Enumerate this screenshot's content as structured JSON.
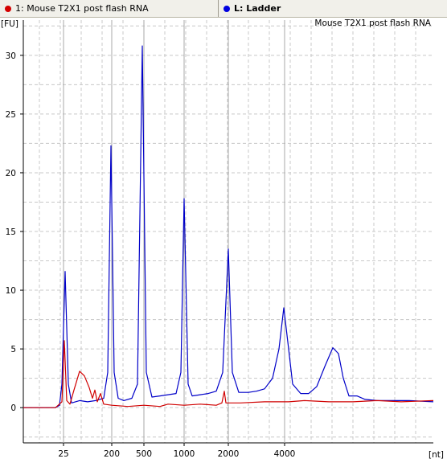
{
  "tabs": [
    {
      "label": "1: Mouse T2X1 post flash RNA",
      "dot_color": "#d40000"
    },
    {
      "label": "L: Ladder",
      "dot_color": "#0000e0"
    }
  ],
  "chart_data": {
    "type": "line",
    "title": "Mouse T2X1 post flash RNA",
    "ylabel": "[FU]",
    "xlabel": "[nt]",
    "ylim": [
      -3,
      33
    ],
    "y_ticks": [
      0,
      5,
      10,
      15,
      20,
      25,
      30
    ],
    "x_ticks": [
      {
        "label": "25",
        "time": 25
      },
      {
        "label": "200",
        "time": 31
      },
      {
        "label": "500",
        "time": 35
      },
      {
        "label": "1000",
        "time": 40
      },
      {
        "label": "2000",
        "time": 45.5
      },
      {
        "label": "4000",
        "time": 52.5
      }
    ],
    "xlim": [
      20,
      71
    ],
    "grid": true,
    "series": [
      {
        "name": "L: Ladder",
        "color": "#0000c8",
        "points": [
          [
            20,
            0
          ],
          [
            24,
            0
          ],
          [
            24.5,
            0.2
          ],
          [
            24.8,
            2
          ],
          [
            25.2,
            11.6
          ],
          [
            25.6,
            2
          ],
          [
            26,
            0.4
          ],
          [
            27,
            0.6
          ],
          [
            28,
            0.5
          ],
          [
            29,
            0.6
          ],
          [
            30,
            0.8
          ],
          [
            30.5,
            3
          ],
          [
            30.9,
            22.3
          ],
          [
            31.3,
            3
          ],
          [
            31.8,
            0.8
          ],
          [
            32.5,
            0.6
          ],
          [
            33.5,
            0.8
          ],
          [
            34.2,
            2
          ],
          [
            34.8,
            30.8
          ],
          [
            35.3,
            3
          ],
          [
            36,
            0.9
          ],
          [
            37,
            1.0
          ],
          [
            38,
            1.1
          ],
          [
            39,
            1.2
          ],
          [
            39.6,
            3
          ],
          [
            40,
            17.8
          ],
          [
            40.5,
            2
          ],
          [
            41,
            1.0
          ],
          [
            42,
            1.1
          ],
          [
            43,
            1.2
          ],
          [
            44,
            1.4
          ],
          [
            44.8,
            3
          ],
          [
            45.5,
            13.5
          ],
          [
            46,
            3
          ],
          [
            46.8,
            1.3
          ],
          [
            48,
            1.3
          ],
          [
            49,
            1.4
          ],
          [
            50,
            1.6
          ],
          [
            51,
            2.5
          ],
          [
            51.8,
            5
          ],
          [
            52.4,
            8.5
          ],
          [
            53,
            5
          ],
          [
            53.5,
            2
          ],
          [
            54.5,
            1.2
          ],
          [
            55.5,
            1.2
          ],
          [
            56.5,
            1.8
          ],
          [
            57.5,
            3.5
          ],
          [
            58.5,
            5.1
          ],
          [
            59.2,
            4.6
          ],
          [
            59.8,
            2.5
          ],
          [
            60.5,
            1
          ],
          [
            61.5,
            1.0
          ],
          [
            62.5,
            0.7
          ],
          [
            64,
            0.6
          ],
          [
            66,
            0.6
          ],
          [
            68,
            0.6
          ],
          [
            71,
            0.5
          ]
        ]
      },
      {
        "name": "1: Mouse T2X1 post flash RNA",
        "color": "#d00000",
        "points": [
          [
            20,
            0
          ],
          [
            24,
            0
          ],
          [
            24.8,
            0.5
          ],
          [
            25.1,
            5.7
          ],
          [
            25.4,
            0.6
          ],
          [
            25.8,
            0.3
          ],
          [
            26.3,
            1.5
          ],
          [
            27,
            3.1
          ],
          [
            27.6,
            2.7
          ],
          [
            28.2,
            1.7
          ],
          [
            28.6,
            0.8
          ],
          [
            28.9,
            1.5
          ],
          [
            29.2,
            0.5
          ],
          [
            29.6,
            1.2
          ],
          [
            30,
            0.3
          ],
          [
            31,
            0.2
          ],
          [
            33,
            0.1
          ],
          [
            35,
            0.2
          ],
          [
            37,
            0.1
          ],
          [
            38,
            0.3
          ],
          [
            40,
            0.2
          ],
          [
            42,
            0.3
          ],
          [
            44,
            0.2
          ],
          [
            44.7,
            0.4
          ],
          [
            45,
            1.4
          ],
          [
            45.2,
            0.4
          ],
          [
            47,
            0.4
          ],
          [
            50,
            0.5
          ],
          [
            53,
            0.5
          ],
          [
            55,
            0.6
          ],
          [
            58,
            0.5
          ],
          [
            61,
            0.5
          ],
          [
            64,
            0.6
          ],
          [
            67,
            0.5
          ],
          [
            71,
            0.6
          ]
        ]
      }
    ]
  }
}
